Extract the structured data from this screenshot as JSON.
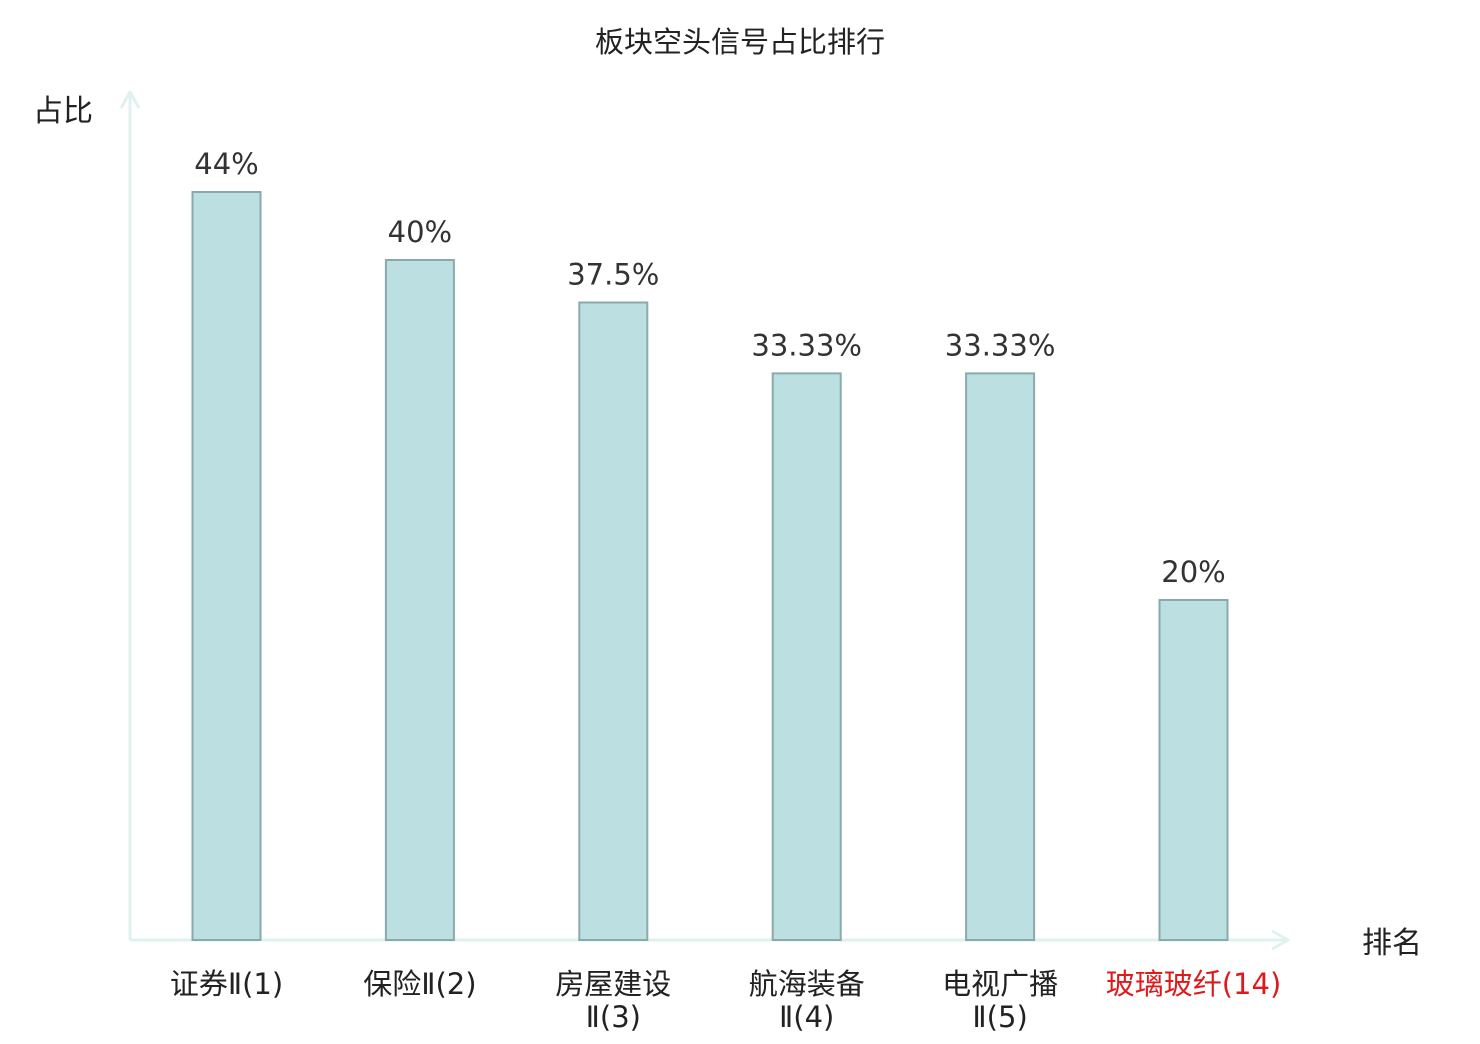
{
  "chart_data": {
    "type": "bar",
    "title": "板块空头信号占比排行",
    "ylabel": "占比",
    "xlabel": "排名",
    "categories": [
      [
        "证券Ⅱ(1)"
      ],
      [
        "保险Ⅱ(2)"
      ],
      [
        "房屋建设",
        "Ⅱ(3)"
      ],
      [
        "航海装备",
        "Ⅱ(4)"
      ],
      [
        "电视广播",
        "Ⅱ(5)"
      ],
      [
        "玻璃玻纤(14)"
      ]
    ],
    "values": [
      44,
      40,
      37.5,
      33.33,
      33.33,
      20
    ],
    "value_labels": [
      "44%",
      "40%",
      "37.5%",
      "33.33%",
      "33.33%",
      "20%"
    ],
    "highlight_index": 5,
    "ylim": [
      0,
      49
    ],
    "grid": false,
    "legend": "none",
    "colors": {
      "bar_fill": "#bce0e2",
      "bar_stroke": "#8aa9aa",
      "axis": "#dff2ef",
      "text": "#222222",
      "value_text": "#333333",
      "highlight": "#e0191b"
    }
  }
}
